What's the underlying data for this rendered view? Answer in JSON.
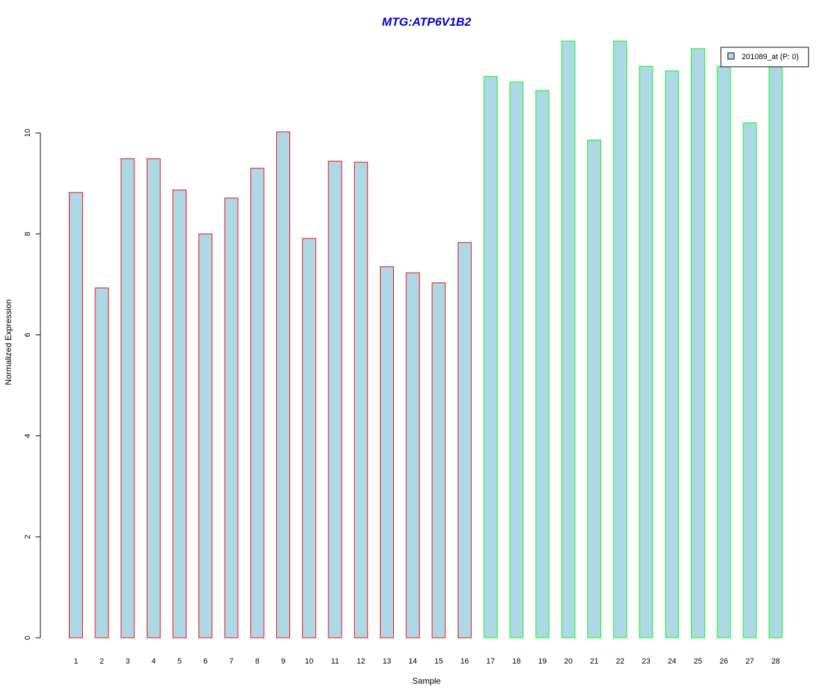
{
  "chart_data": {
    "type": "bar",
    "title": "MTG:ATP6V1B2",
    "xlabel": "Sample",
    "ylabel": "Normalized Expression",
    "categories": [
      "1",
      "2",
      "3",
      "4",
      "5",
      "6",
      "7",
      "8",
      "9",
      "10",
      "11",
      "12",
      "13",
      "14",
      "15",
      "16",
      "17",
      "18",
      "19",
      "20",
      "21",
      "22",
      "23",
      "24",
      "25",
      "26",
      "27",
      "28"
    ],
    "series": [
      {
        "name": "201089_at (P: 0)",
        "values": [
          8.82,
          6.93,
          9.49,
          9.49,
          8.87,
          8.0,
          8.71,
          9.3,
          10.02,
          7.91,
          9.44,
          9.42,
          7.35,
          7.23,
          7.03,
          7.83,
          11.12,
          11.01,
          10.84,
          11.82,
          9.86,
          11.82,
          11.32,
          11.23,
          11.67,
          11.32,
          10.2,
          11.32
        ]
      }
    ],
    "group_of_sample": [
      1,
      1,
      1,
      1,
      1,
      1,
      1,
      1,
      1,
      1,
      1,
      1,
      1,
      1,
      1,
      1,
      2,
      2,
      2,
      2,
      2,
      2,
      2,
      2,
      2,
      2,
      2,
      2
    ],
    "yticks": [
      0,
      2,
      4,
      6,
      8,
      10
    ],
    "ylim": [
      0,
      11.82
    ],
    "grid": false,
    "legend_position": "top-right"
  },
  "colors": {
    "title": "#0000cc",
    "bar_fill": "#add8e6",
    "group1_border": "#ff0000",
    "group2_border": "#00ff00",
    "axis": "#000000"
  }
}
